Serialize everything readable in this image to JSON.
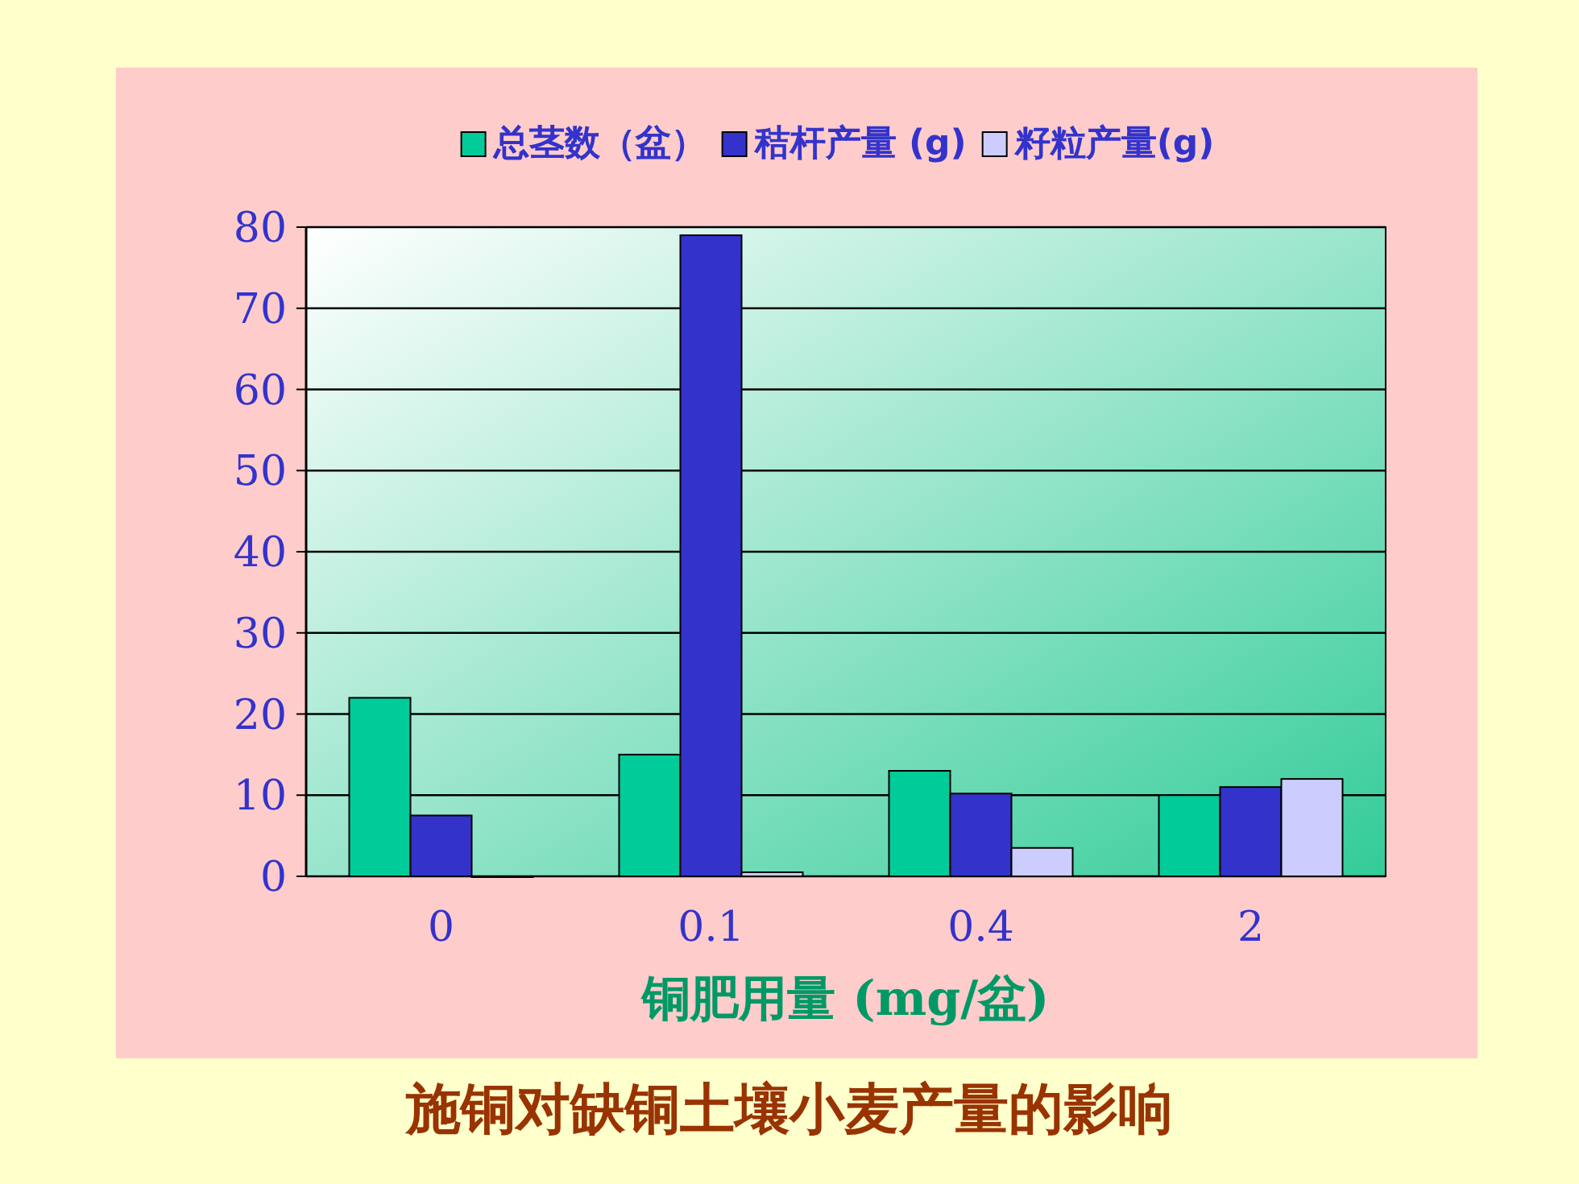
{
  "chart_data": {
    "type": "bar",
    "title": "施铜对缺铜土壤小麦产量的影响",
    "xlabel": "铜肥用量 (mg/盆)",
    "categories": [
      "0",
      "0.1",
      "0.4",
      "2"
    ],
    "series": [
      {
        "name": "总茎数（盆）",
        "color": "#00cc99",
        "values": [
          22,
          15,
          13,
          10
        ]
      },
      {
        "name": "秸杆产量 (g)",
        "color": "#3333cc",
        "values": [
          7.5,
          79,
          10.2,
          11
        ]
      },
      {
        "name": "籽粒产量(g)",
        "color": "#ccccff",
        "values": [
          0,
          0.5,
          3.5,
          12
        ]
      }
    ],
    "ylim": [
      0,
      80
    ],
    "yticks": [
      0,
      10,
      20,
      30,
      40,
      50,
      60,
      70,
      80
    ],
    "grid": "y",
    "legend": "top"
  }
}
